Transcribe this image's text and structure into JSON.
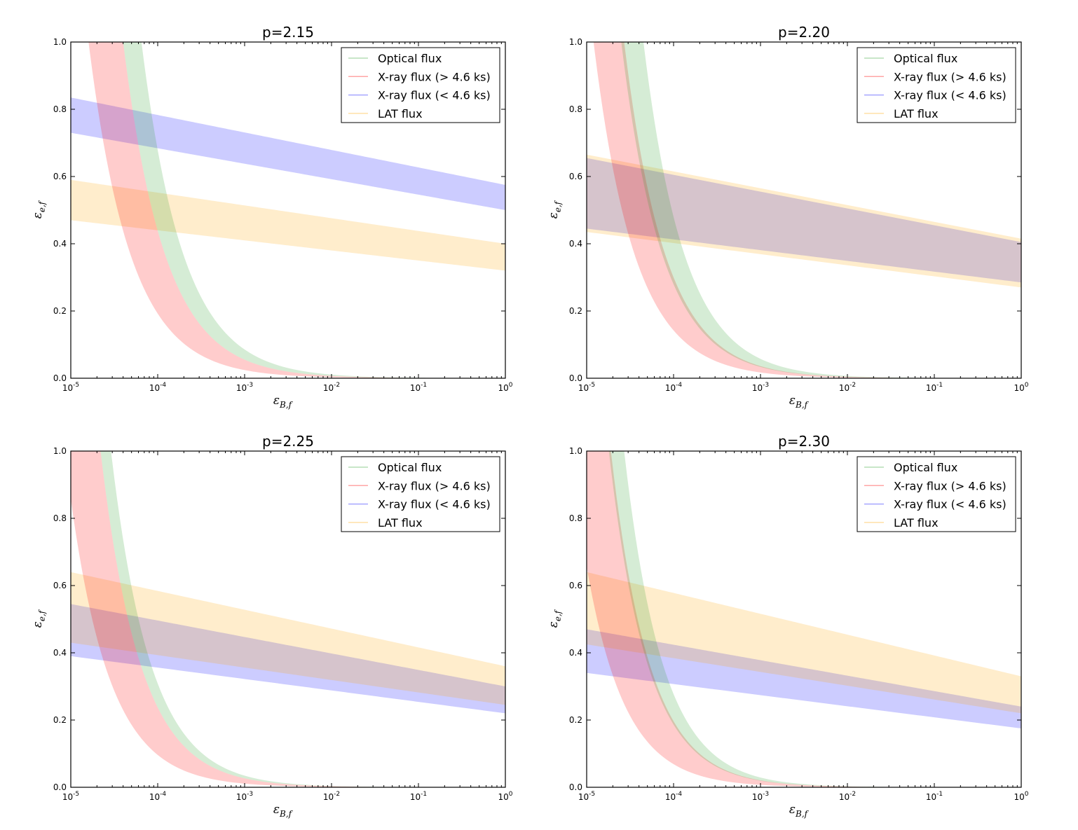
{
  "figure": {
    "width": 1538,
    "height": 1185
  },
  "legend_entries": [
    {
      "key": "optical",
      "label": "Optical flux",
      "color": "#2ca02c"
    },
    {
      "key": "xray_late",
      "label": "X-ray flux (> 4.6 ks)",
      "color": "#ff0000"
    },
    {
      "key": "xray_early",
      "label": "X-ray flux (< 4.6 ks)",
      "color": "#0000ff"
    },
    {
      "key": "lat",
      "label": "LAT flux",
      "color": "#ffa500"
    }
  ],
  "chart_data": [
    {
      "type": "area",
      "title": "p=2.15",
      "xlabel": "εB,f",
      "ylabel": "εe,f",
      "xscale": "log",
      "xlim": [
        1e-05,
        1
      ],
      "ylim": [
        0,
        1
      ],
      "xticks": [
        1e-05,
        0.0001,
        0.001,
        0.01,
        0.1,
        1
      ],
      "xtick_bases": [
        "10",
        "10",
        "10",
        "10",
        "10",
        "10"
      ],
      "xtick_exps": [
        "-5",
        "-4",
        "-3",
        "-2",
        "-1",
        "0"
      ],
      "yticks": [
        "0.0",
        "0.2",
        "0.4",
        "0.6",
        "0.8",
        "1.0"
      ],
      "legend_location": "top-right",
      "series": [
        {
          "key": "optical",
          "name": "Optical flux",
          "kind": "power",
          "lower": {
            "x0": 4e-05,
            "slope": 0.9
          },
          "upper": {
            "x0": 6.5e-05,
            "slope": 0.9
          }
        },
        {
          "key": "xray_late",
          "name": "X-ray flux (> 4.6 ks)",
          "kind": "power",
          "lower": {
            "x0": 1.6e-05,
            "slope": 0.9
          },
          "upper": {
            "x0": 4e-05,
            "slope": 0.9
          }
        },
        {
          "key": "xray_early",
          "name": "X-ray flux (< 4.6 ks)",
          "kind": "linear",
          "lower": [
            0.73,
            0.5
          ],
          "upper": [
            0.835,
            0.575
          ]
        },
        {
          "key": "lat",
          "name": "LAT flux",
          "kind": "linear",
          "lower": [
            0.47,
            0.32
          ],
          "upper": [
            0.59,
            0.4
          ]
        }
      ]
    },
    {
      "type": "area",
      "title": "p=2.20",
      "xlabel": "εB,f",
      "ylabel": "εe,f",
      "xscale": "log",
      "xlim": [
        1e-05,
        1
      ],
      "ylim": [
        0,
        1
      ],
      "xticks": [
        1e-05,
        0.0001,
        0.001,
        0.01,
        0.1,
        1
      ],
      "xtick_bases": [
        "10",
        "10",
        "10",
        "10",
        "10",
        "10"
      ],
      "xtick_exps": [
        "-5",
        "-4",
        "-3",
        "-2",
        "-1",
        "0"
      ],
      "yticks": [
        "0.0",
        "0.2",
        "0.4",
        "0.6",
        "0.8",
        "1.0"
      ],
      "legend_location": "top-right",
      "series": [
        {
          "key": "optical",
          "name": "Optical flux",
          "kind": "power",
          "lower": {
            "x0": 2.5e-05,
            "slope": 0.92
          },
          "upper": {
            "x0": 4.5e-05,
            "slope": 0.92
          }
        },
        {
          "key": "xray_late",
          "name": "X-ray flux (> 4.6 ks)",
          "kind": "power",
          "lower": {
            "x0": 1.2e-05,
            "slope": 0.92
          },
          "upper": {
            "x0": 2.7e-05,
            "slope": 0.92
          }
        },
        {
          "key": "xray_early",
          "name": "X-ray flux (< 4.6 ks)",
          "kind": "linear",
          "lower": [
            0.445,
            0.285
          ],
          "upper": [
            0.655,
            0.405
          ]
        },
        {
          "key": "lat",
          "name": "LAT flux",
          "kind": "linear",
          "lower": [
            0.435,
            0.27
          ],
          "upper": [
            0.665,
            0.415
          ]
        }
      ]
    },
    {
      "type": "area",
      "title": "p=2.25",
      "xlabel": "εB,f",
      "ylabel": "εe,f",
      "xscale": "log",
      "xlim": [
        1e-05,
        1
      ],
      "ylim": [
        0,
        1
      ],
      "xticks": [
        1e-05,
        0.0001,
        0.001,
        0.01,
        0.1,
        1
      ],
      "xtick_bases": [
        "10",
        "10",
        "10",
        "10",
        "10",
        "10"
      ],
      "xtick_exps": [
        "-5",
        "-4",
        "-3",
        "-2",
        "-1",
        "0"
      ],
      "yticks": [
        "0.0",
        "0.2",
        "0.4",
        "0.6",
        "0.8",
        "1.0"
      ],
      "legend_location": "top-right",
      "series": [
        {
          "key": "optical",
          "name": "Optical flux",
          "kind": "power",
          "lower": {
            "x0": 2.2e-05,
            "slope": 0.95
          },
          "upper": {
            "x0": 2.9e-05,
            "slope": 0.95
          }
        },
        {
          "key": "xray_late",
          "name": "X-ray flux (> 4.6 ks)",
          "kind": "power",
          "lower": {
            "x0": 8.5e-06,
            "slope": 0.95
          },
          "upper": {
            "x0": 2.2e-05,
            "slope": 0.95
          }
        },
        {
          "key": "xray_early",
          "name": "X-ray flux (< 4.6 ks)",
          "kind": "linear",
          "lower": [
            0.39,
            0.22
          ],
          "upper": [
            0.545,
            0.3
          ]
        },
        {
          "key": "lat",
          "name": "LAT flux",
          "kind": "linear",
          "lower": [
            0.43,
            0.245
          ],
          "upper": [
            0.64,
            0.36
          ]
        }
      ]
    },
    {
      "type": "area",
      "title": "p=2.30",
      "xlabel": "εB,f",
      "ylabel": "εe,f",
      "xscale": "log",
      "xlim": [
        1e-05,
        1
      ],
      "ylim": [
        0,
        1
      ],
      "xticks": [
        1e-05,
        0.0001,
        0.001,
        0.01,
        0.1,
        1
      ],
      "xtick_bases": [
        "10",
        "10",
        "10",
        "10",
        "10",
        "10"
      ],
      "xtick_exps": [
        "-5",
        "-4",
        "-3",
        "-2",
        "-1",
        "0"
      ],
      "yticks": [
        "0.0",
        "0.2",
        "0.4",
        "0.6",
        "0.8",
        "1.0"
      ],
      "legend_location": "top-right",
      "series": [
        {
          "key": "optical",
          "name": "Optical flux",
          "kind": "power",
          "lower": {
            "x0": 1.8e-05,
            "slope": 0.98
          },
          "upper": {
            "x0": 2.7e-05,
            "slope": 0.98
          }
        },
        {
          "key": "xray_late",
          "name": "X-ray flux (> 4.6 ks)",
          "kind": "power",
          "lower": {
            "x0": 6.5e-06,
            "slope": 0.98
          },
          "upper": {
            "x0": 1.9e-05,
            "slope": 0.98
          }
        },
        {
          "key": "xray_early",
          "name": "X-ray flux (< 4.6 ks)",
          "kind": "linear",
          "lower": [
            0.34,
            0.175
          ],
          "upper": [
            0.47,
            0.24
          ]
        },
        {
          "key": "lat",
          "name": "LAT flux",
          "kind": "linear",
          "lower": [
            0.425,
            0.22
          ],
          "upper": [
            0.64,
            0.33
          ]
        }
      ]
    }
  ]
}
